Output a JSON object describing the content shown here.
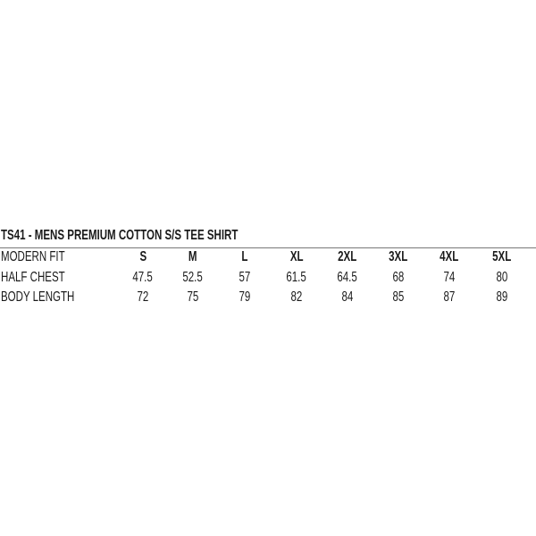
{
  "title": "TS41 - MENS PREMIUM COTTON S/S TEE SHIRT",
  "table": {
    "header_label": "MODERN FIT",
    "sizes": [
      "S",
      "M",
      "L",
      "XL",
      "2XL",
      "3XL",
      "4XL",
      "5XL"
    ],
    "rows": [
      {
        "label": "HALF CHEST",
        "values": [
          "47.5",
          "52.5",
          "57",
          "61.5",
          "64.5",
          "68",
          "74",
          "80"
        ]
      },
      {
        "label": "BODY LENGTH",
        "values": [
          "72",
          "75",
          "79",
          "82",
          "84",
          "85",
          "87",
          "89"
        ]
      }
    ]
  }
}
